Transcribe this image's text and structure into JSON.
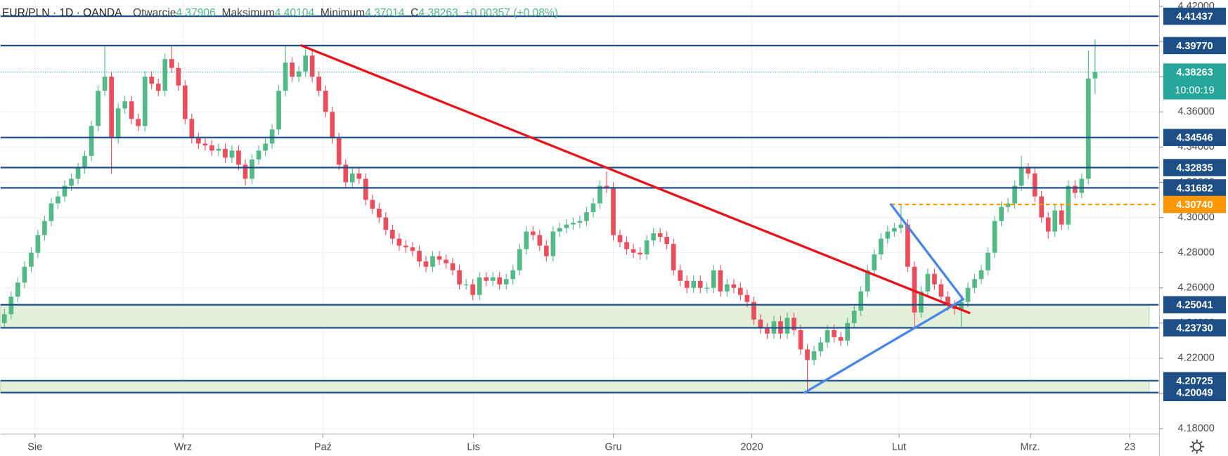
{
  "chart_data": {
    "type": "candlestick",
    "header": {
      "symbol": "EUR/PLN · 1D · OANDA",
      "open_label": "Otwarcie",
      "high_label": "Maksimum",
      "low_label": "Minimum",
      "close_label": "C",
      "change": "+0.00357 (+0.08%)"
    },
    "countdown": "10:00:19",
    "up_color": "#53b987",
    "down_color": "#eb4d5c",
    "grid": true,
    "xlim": [
      -0.585,
      172.5
    ],
    "ylim": [
      4.1769,
      4.4236
    ],
    "xticks": [
      {
        "value": 4.56,
        "label": "Sie"
      },
      {
        "value": 26.7,
        "label": "Wrz"
      },
      {
        "value": 47.6,
        "label": "Paź"
      },
      {
        "value": 70.1,
        "label": "Lis"
      },
      {
        "value": 91.0,
        "label": "Gru"
      },
      {
        "value": 111.7,
        "label": "2020"
      },
      {
        "value": 133.7,
        "label": "Lut"
      },
      {
        "value": 153.3,
        "label": "Mrz."
      },
      {
        "value": 168.2,
        "label": "23"
      }
    ],
    "yticks": [
      {
        "value": 4.18,
        "label": "4.18000"
      },
      {
        "value": 4.2,
        "label": "4.20000"
      },
      {
        "value": 4.22,
        "label": "4.22000"
      },
      {
        "value": 4.24,
        "label": "4.24000"
      },
      {
        "value": 4.26,
        "label": "4.26000"
      },
      {
        "value": 4.28,
        "label": "4.28000"
      },
      {
        "value": 4.3,
        "label": "4.30000"
      },
      {
        "value": 4.32,
        "label": "4.32000"
      },
      {
        "value": 4.34,
        "label": "4.34000"
      },
      {
        "value": 4.36,
        "label": "4.36000"
      },
      {
        "value": 4.38,
        "label": "4.38000"
      },
      {
        "value": 4.4,
        "label": "4.40000"
      },
      {
        "value": 4.42,
        "label": "4.42000"
      }
    ],
    "open": [
      4.24,
      4.245,
      4.255,
      4.263,
      4.272,
      4.28,
      4.29,
      4.298,
      4.308,
      4.312,
      4.318,
      4.322,
      4.328,
      4.335,
      4.352,
      4.372,
      4.38,
      4.345,
      4.362,
      4.366,
      4.356,
      4.352,
      4.38,
      4.376,
      4.372,
      4.39,
      4.385,
      4.375,
      4.356,
      4.345,
      4.342,
      4.341,
      4.338,
      4.339,
      4.334,
      4.338,
      4.33,
      4.322,
      4.333,
      4.338,
      4.342,
      4.35,
      4.372,
      4.388,
      4.38,
      4.383,
      4.392,
      4.38,
      4.372,
      4.36,
      4.345,
      4.33,
      4.32,
      4.325,
      4.322,
      4.31,
      4.305,
      4.3,
      4.293,
      4.288,
      4.284,
      4.283,
      4.281,
      4.275,
      4.272,
      4.278,
      4.276,
      4.274,
      4.27,
      4.262,
      4.262,
      4.256,
      4.266,
      4.264,
      4.266,
      4.262,
      4.265,
      4.27,
      4.282,
      4.292,
      4.29,
      4.284,
      4.278,
      4.292,
      4.294,
      4.296,
      4.297,
      4.298,
      4.303,
      4.308,
      4.318,
      4.317,
      4.29,
      4.286,
      4.282,
      4.28,
      4.279,
      4.287,
      4.291,
      4.289,
      4.285,
      4.27,
      4.264,
      4.26,
      4.264,
      4.26,
      4.26,
      4.27,
      4.258,
      4.262,
      4.26,
      4.256,
      4.252,
      4.242,
      4.237,
      4.234,
      4.241,
      4.234,
      4.243,
      4.236,
      4.225,
      4.219,
      4.224,
      4.229,
      4.236,
      4.232,
      4.23,
      4.24,
      4.247,
      4.258,
      4.27,
      4.279,
      4.288,
      4.292,
      4.294,
      4.296,
      4.272,
      4.246,
      4.258,
      4.268,
      4.262,
      4.255,
      4.25,
      4.248,
      4.252,
      4.26,
      4.265,
      4.27,
      4.28,
      4.298,
      4.306,
      4.308,
      4.318,
      4.328,
      4.325,
      4.312,
      4.3,
      4.292,
      4.304,
      4.296,
      4.318,
      4.314,
      4.322,
      4.37906
    ],
    "high": [
      4.248,
      4.258,
      4.266,
      4.275,
      4.283,
      4.293,
      4.301,
      4.311,
      4.315,
      4.321,
      4.325,
      4.331,
      4.338,
      4.355,
      4.375,
      4.397,
      4.383,
      4.365,
      4.369,
      4.369,
      4.359,
      4.383,
      4.383,
      4.379,
      4.393,
      4.398,
      4.388,
      4.378,
      4.359,
      4.348,
      4.345,
      4.344,
      4.342,
      4.342,
      4.341,
      4.341,
      4.333,
      4.336,
      4.341,
      4.345,
      4.353,
      4.375,
      4.398,
      4.391,
      4.386,
      4.396,
      4.395,
      4.383,
      4.375,
      4.363,
      4.348,
      4.333,
      4.328,
      4.328,
      4.325,
      4.313,
      4.308,
      4.303,
      4.296,
      4.291,
      4.287,
      4.286,
      4.284,
      4.278,
      4.281,
      4.281,
      4.279,
      4.277,
      4.273,
      4.265,
      4.265,
      4.269,
      4.269,
      4.269,
      4.269,
      4.268,
      4.273,
      4.285,
      4.295,
      4.295,
      4.293,
      4.287,
      4.295,
      4.297,
      4.299,
      4.3,
      4.301,
      4.306,
      4.311,
      4.321,
      4.326,
      4.32,
      4.293,
      4.289,
      4.285,
      4.283,
      4.29,
      4.294,
      4.294,
      4.292,
      4.288,
      4.273,
      4.267,
      4.267,
      4.267,
      4.263,
      4.273,
      4.273,
      4.265,
      4.265,
      4.263,
      4.259,
      4.255,
      4.245,
      4.24,
      4.244,
      4.244,
      4.246,
      4.246,
      4.239,
      4.228,
      4.227,
      4.232,
      4.239,
      4.239,
      4.235,
      4.243,
      4.25,
      4.261,
      4.273,
      4.282,
      4.291,
      4.295,
      4.297,
      4.307,
      4.299,
      4.275,
      4.261,
      4.271,
      4.271,
      4.265,
      4.258,
      4.253,
      4.255,
      4.263,
      4.268,
      4.273,
      4.283,
      4.301,
      4.309,
      4.311,
      4.321,
      4.335,
      4.331,
      4.328,
      4.315,
      4.303,
      4.307,
      4.307,
      4.321,
      4.321,
      4.325,
      4.395,
      4.40104
    ],
    "low": [
      4.237,
      4.242,
      4.252,
      4.26,
      4.269,
      4.277,
      4.287,
      4.295,
      4.305,
      4.309,
      4.315,
      4.319,
      4.325,
      4.332,
      4.349,
      4.369,
      4.325,
      4.342,
      4.359,
      4.353,
      4.349,
      4.349,
      4.373,
      4.369,
      4.369,
      4.382,
      4.372,
      4.353,
      4.342,
      4.339,
      4.338,
      4.335,
      4.335,
      4.331,
      4.331,
      4.327,
      4.318,
      4.319,
      4.33,
      4.335,
      4.339,
      4.347,
      4.369,
      4.377,
      4.377,
      4.38,
      4.377,
      4.369,
      4.357,
      4.342,
      4.327,
      4.317,
      4.317,
      4.319,
      4.307,
      4.302,
      4.297,
      4.29,
      4.285,
      4.281,
      4.28,
      4.278,
      4.272,
      4.269,
      4.269,
      4.273,
      4.271,
      4.267,
      4.259,
      4.259,
      4.253,
      4.253,
      4.261,
      4.261,
      4.259,
      4.259,
      4.262,
      4.267,
      4.279,
      4.287,
      4.281,
      4.275,
      4.275,
      4.289,
      4.291,
      4.293,
      4.294,
      4.295,
      4.3,
      4.305,
      4.314,
      4.287,
      4.283,
      4.279,
      4.277,
      4.276,
      4.276,
      4.284,
      4.286,
      4.282,
      4.267,
      4.261,
      4.257,
      4.257,
      4.257,
      4.257,
      4.257,
      4.255,
      4.255,
      4.257,
      4.253,
      4.249,
      4.239,
      4.234,
      4.231,
      4.231,
      4.231,
      4.231,
      4.233,
      4.222,
      4.2005,
      4.216,
      4.221,
      4.226,
      4.229,
      4.227,
      4.227,
      4.237,
      4.244,
      4.255,
      4.267,
      4.276,
      4.285,
      4.289,
      4.291,
      4.269,
      4.238,
      4.243,
      4.255,
      4.259,
      4.252,
      4.247,
      4.245,
      4.238,
      4.249,
      4.257,
      4.262,
      4.267,
      4.277,
      4.295,
      4.303,
      4.305,
      4.315,
      4.322,
      4.309,
      4.297,
      4.288,
      4.289,
      4.293,
      4.293,
      4.311,
      4.311,
      4.319,
      4.37014
    ],
    "close": [
      4.245,
      4.255,
      4.263,
      4.272,
      4.28,
      4.29,
      4.298,
      4.308,
      4.312,
      4.318,
      4.322,
      4.328,
      4.335,
      4.352,
      4.372,
      4.38,
      4.345,
      4.362,
      4.366,
      4.356,
      4.352,
      4.38,
      4.376,
      4.372,
      4.39,
      4.385,
      4.375,
      4.356,
      4.345,
      4.342,
      4.341,
      4.338,
      4.339,
      4.334,
      4.338,
      4.33,
      4.322,
      4.333,
      4.338,
      4.342,
      4.35,
      4.372,
      4.388,
      4.38,
      4.383,
      4.392,
      4.38,
      4.372,
      4.36,
      4.345,
      4.33,
      4.32,
      4.325,
      4.322,
      4.31,
      4.305,
      4.3,
      4.293,
      4.288,
      4.284,
      4.283,
      4.281,
      4.275,
      4.272,
      4.278,
      4.276,
      4.274,
      4.27,
      4.262,
      4.262,
      4.256,
      4.266,
      4.264,
      4.266,
      4.262,
      4.265,
      4.27,
      4.282,
      4.292,
      4.29,
      4.284,
      4.278,
      4.292,
      4.294,
      4.296,
      4.297,
      4.298,
      4.303,
      4.308,
      4.318,
      4.317,
      4.29,
      4.286,
      4.282,
      4.28,
      4.279,
      4.287,
      4.291,
      4.289,
      4.285,
      4.27,
      4.264,
      4.26,
      4.264,
      4.26,
      4.26,
      4.27,
      4.258,
      4.262,
      4.26,
      4.256,
      4.252,
      4.242,
      4.237,
      4.234,
      4.241,
      4.234,
      4.243,
      4.236,
      4.225,
      4.219,
      4.224,
      4.229,
      4.236,
      4.232,
      4.23,
      4.24,
      4.247,
      4.258,
      4.27,
      4.279,
      4.288,
      4.292,
      4.294,
      4.296,
      4.272,
      4.246,
      4.258,
      4.268,
      4.262,
      4.255,
      4.25,
      4.248,
      4.252,
      4.26,
      4.265,
      4.27,
      4.28,
      4.298,
      4.306,
      4.308,
      4.318,
      4.328,
      4.325,
      4.312,
      4.3,
      4.292,
      4.304,
      4.296,
      4.318,
      4.314,
      4.322,
      4.379,
      4.38263
    ],
    "levels": [
      {
        "value": 4.41437,
        "color": "#1d4f86"
      },
      {
        "value": 4.3977,
        "label": "4.39770",
        "color": "#1d4f86"
      },
      {
        "value": 4.34546,
        "color": "#1d4f86"
      },
      {
        "value": 4.32835,
        "color": "#1d4f86"
      },
      {
        "value": 4.31682,
        "color": "#1d4f86"
      },
      {
        "value": 4.3074,
        "label": "4.30740",
        "color": "#ff9800",
        "dashed": true,
        "start": 132.5
      },
      {
        "value": 4.25041,
        "color": "#1d4f86"
      },
      {
        "value": 4.2373,
        "label": "4.23730",
        "color": "#1d4f86"
      },
      {
        "value": 4.20725,
        "color": "#1d4f86"
      },
      {
        "value": 4.20049,
        "color": "#1d4f86"
      }
    ],
    "zones": [
      {
        "from": 4.2373,
        "to": 4.25041,
        "color": "#e2efd9"
      },
      {
        "from": 4.20049,
        "to": 4.20725,
        "color": "#e2efd9"
      }
    ],
    "trendlines": [
      {
        "color": "#e8141b",
        "from": [
          44.4,
          4.3977
        ],
        "to": [
          144.2,
          4.2458
        ]
      },
      {
        "color": "#4a86e8",
        "from": [
          119.6,
          4.2005
        ],
        "to": [
          143.3,
          4.2535
        ]
      },
      {
        "color": "#4a86e8",
        "from": [
          132.5,
          4.3074
        ],
        "to": [
          143.3,
          4.2535
        ]
      }
    ],
    "last_color": "#26a69a"
  }
}
